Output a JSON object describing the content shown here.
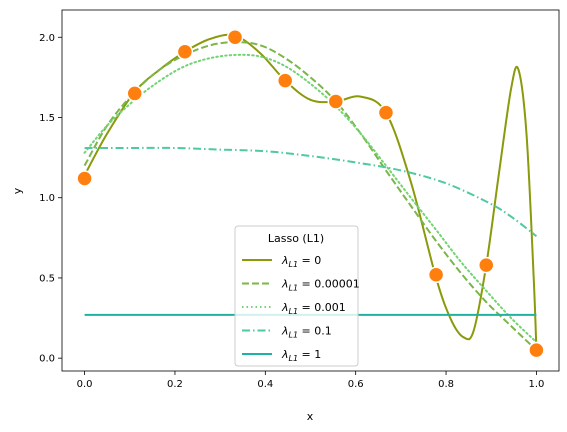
{
  "chart_data": {
    "type": "line",
    "title": "",
    "xlabel": "x",
    "ylabel": "y",
    "xlim": [
      -0.05,
      1.05
    ],
    "ylim": [
      -0.08,
      2.17
    ],
    "xticks": [
      "0.0",
      "0.2",
      "0.4",
      "0.6",
      "0.8",
      "1.0"
    ],
    "yticks": [
      "0.0",
      "0.5",
      "1.0",
      "1.5",
      "2.0"
    ],
    "grid": false,
    "legend": {
      "title": "Lasso (L1)",
      "placement": "lower-center",
      "entries": [
        "λL1 = 0",
        "λL1 = 0.00001",
        "λL1 = 0.001",
        "λL1 = 0.1",
        "λL1 = 1"
      ]
    },
    "series": [
      {
        "name": "λL1 = 0",
        "color": "#8a9a0a",
        "style": "solid",
        "x": [
          0.0,
          0.05,
          0.111,
          0.167,
          0.222,
          0.278,
          0.333,
          0.389,
          0.444,
          0.5,
          0.556,
          0.611,
          0.667,
          0.722,
          0.778,
          0.811,
          0.839,
          0.861,
          0.889,
          0.917,
          0.944,
          0.96,
          0.978,
          0.994,
          1.0
        ],
        "y": [
          1.14,
          1.4,
          1.66,
          1.8,
          1.91,
          1.99,
          2.01,
          1.9,
          1.73,
          1.61,
          1.6,
          1.63,
          1.53,
          1.1,
          0.5,
          0.24,
          0.13,
          0.17,
          0.58,
          1.15,
          1.68,
          1.8,
          1.4,
          0.5,
          0.05
        ]
      },
      {
        "name": "λL1 = 0.00001",
        "color": "#7ab648",
        "style": "dashed",
        "x": [
          0.0,
          0.05,
          0.111,
          0.167,
          0.222,
          0.278,
          0.333,
          0.389,
          0.444,
          0.5,
          0.556,
          0.611,
          0.667,
          0.722,
          0.778,
          0.833,
          0.889,
          0.944,
          1.0
        ],
        "y": [
          1.2,
          1.45,
          1.66,
          1.8,
          1.89,
          1.95,
          1.97,
          1.95,
          1.87,
          1.75,
          1.6,
          1.4,
          1.17,
          0.95,
          0.73,
          0.53,
          0.35,
          0.2,
          0.05
        ]
      },
      {
        "name": "λL1 = 0.001",
        "color": "#72d472",
        "style": "dotted",
        "x": [
          0.0,
          0.05,
          0.111,
          0.167,
          0.222,
          0.278,
          0.333,
          0.389,
          0.444,
          0.5,
          0.556,
          0.611,
          0.667,
          0.722,
          0.778,
          0.833,
          0.889,
          0.944,
          1.0
        ],
        "y": [
          1.28,
          1.45,
          1.61,
          1.73,
          1.82,
          1.87,
          1.89,
          1.88,
          1.82,
          1.71,
          1.57,
          1.4,
          1.2,
          1.0,
          0.8,
          0.6,
          0.42,
          0.25,
          0.1
        ]
      },
      {
        "name": "λL1 = 0.1",
        "color": "#4ec9a0",
        "style": "dashdot",
        "x": [
          0.0,
          0.1,
          0.2,
          0.3,
          0.4,
          0.5,
          0.6,
          0.7,
          0.8,
          0.9,
          0.95,
          1.0
        ],
        "y": [
          1.31,
          1.31,
          1.31,
          1.3,
          1.29,
          1.26,
          1.22,
          1.17,
          1.09,
          0.96,
          0.87,
          0.76
        ]
      },
      {
        "name": "λL1 = 1",
        "color": "#20b2a0",
        "style": "solid",
        "x": [
          0.0,
          1.0
        ],
        "y": [
          0.27,
          0.27
        ]
      }
    ],
    "points": {
      "color": "#ff7f0e",
      "x": [
        0.0,
        0.111,
        0.222,
        0.333,
        0.444,
        0.556,
        0.667,
        0.778,
        0.889,
        1.0
      ],
      "y": [
        1.12,
        1.65,
        1.91,
        2.0,
        1.73,
        1.6,
        1.53,
        0.52,
        0.58,
        0.05
      ]
    }
  }
}
